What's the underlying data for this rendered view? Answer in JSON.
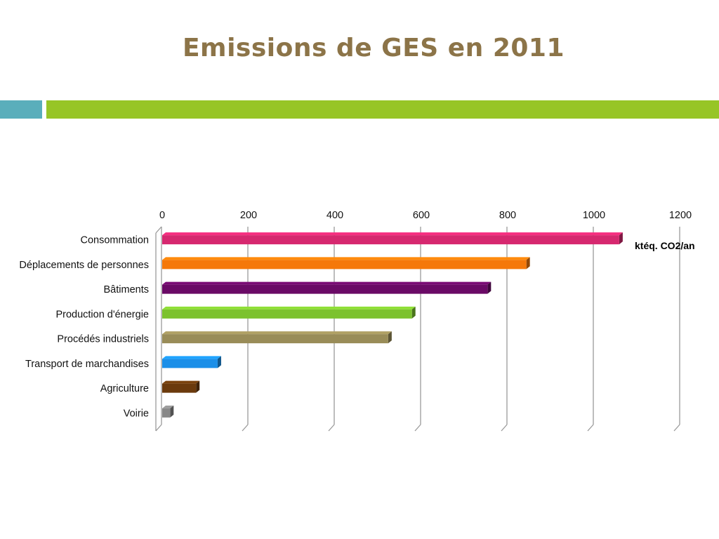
{
  "slide": {
    "title": "Emissions de GES en 2011",
    "accent_colors": [
      "#5aaebb",
      "#97c526"
    ],
    "title_color": "#8c7448"
  },
  "chart_data": {
    "type": "bar",
    "orientation": "horizontal",
    "style": "3d",
    "title": "",
    "xlabel": "",
    "ylabel": "",
    "unit_label": "ktéq. CO2/an",
    "xlim": [
      0,
      1200
    ],
    "ticks": [
      0,
      200,
      400,
      600,
      800,
      1000,
      1200
    ],
    "grid": true,
    "categories": [
      "Consommation",
      "Déplacements de personnes",
      "Bâtiments",
      "Production d'énergie",
      "Procédés industriels",
      "Transport de marchandises",
      "Agriculture",
      "Voirie"
    ],
    "values": [
      1060,
      845,
      755,
      580,
      525,
      130,
      80,
      20
    ],
    "colors": [
      "#d6286f",
      "#f5780a",
      "#6a0a66",
      "#7cc22e",
      "#998c58",
      "#1b8fe8",
      "#6b3a0c",
      "#888888"
    ]
  }
}
